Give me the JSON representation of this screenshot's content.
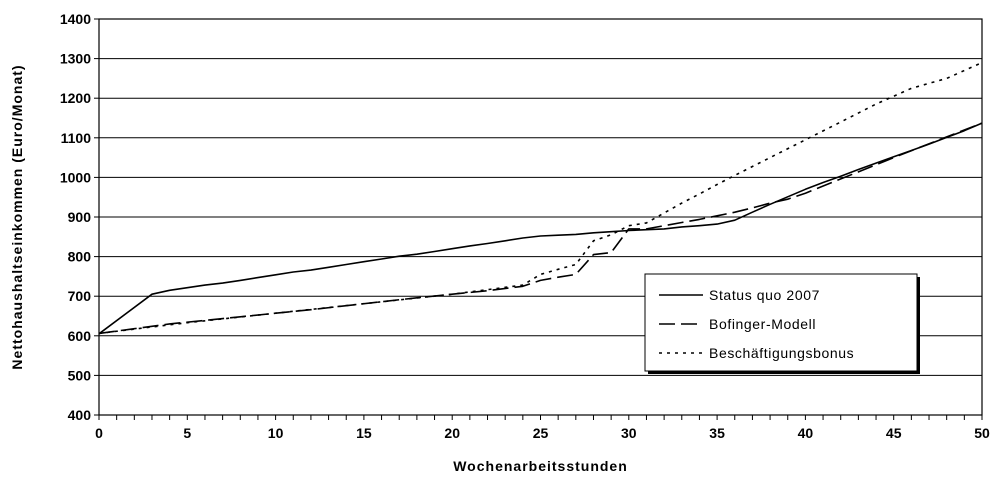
{
  "chart_data": {
    "type": "line",
    "title": "",
    "xlabel": "Wochenarbeitsstunden",
    "ylabel": "Nettohaushaltseinkommen (Euro/Monat)",
    "xlim": [
      0,
      50
    ],
    "ylim": [
      400,
      1400
    ],
    "x_ticks": [
      "0",
      "5",
      "10",
      "15",
      "20",
      "25",
      "30",
      "35",
      "40",
      "45",
      "50"
    ],
    "y_ticks": [
      "400",
      "500",
      "600",
      "700",
      "800",
      "900",
      "1000",
      "1100",
      "1200",
      "1300",
      "1400"
    ],
    "grid": "horizontal",
    "legend_position": "right-center",
    "series": [
      {
        "name": "Status quo 2007",
        "style": "solid",
        "x": [
          0,
          3,
          4,
          6,
          7,
          8,
          9,
          10,
          11,
          12,
          13,
          14,
          15,
          16,
          17,
          18,
          19,
          20,
          21,
          22,
          23,
          24,
          25,
          26,
          27,
          28,
          29,
          30,
          31,
          32,
          33,
          34,
          35,
          36,
          37,
          38,
          39,
          40,
          41,
          42,
          43,
          44,
          45,
          46,
          47,
          48,
          49,
          50
        ],
        "values": [
          605,
          705,
          715,
          728,
          733,
          740,
          747,
          754,
          761,
          766,
          773,
          780,
          787,
          794,
          801,
          806,
          813,
          820,
          827,
          833,
          840,
          847,
          852,
          854,
          856,
          860,
          863,
          866,
          868,
          870,
          875,
          878,
          882,
          892,
          912,
          932,
          951,
          970,
          987,
          1003,
          1020,
          1036,
          1052,
          1068,
          1084,
          1101,
          1118,
          1137
        ]
      },
      {
        "name": "Bofinger-Modell",
        "style": "dashed",
        "x": [
          0,
          2,
          4,
          6,
          8,
          10,
          12,
          14,
          16,
          18,
          20,
          22,
          24,
          25,
          26,
          27,
          28,
          29,
          30,
          31,
          32,
          33,
          34,
          35,
          36,
          37,
          38,
          39,
          40,
          45,
          50
        ],
        "values": [
          606,
          618,
          630,
          639,
          648,
          657,
          666,
          676,
          686,
          696,
          705,
          714,
          725,
          740,
          748,
          755,
          805,
          810,
          870,
          870,
          878,
          886,
          894,
          903,
          912,
          923,
          935,
          945,
          960,
          1050,
          1137
        ]
      },
      {
        "name": "Beschäftigungsbonus",
        "style": "dotted",
        "x": [
          0,
          5,
          10,
          15,
          20,
          24,
          25,
          26,
          27,
          28,
          29,
          30,
          31,
          32,
          33,
          34,
          35,
          36,
          38,
          40,
          42,
          44,
          46,
          48,
          50
        ],
        "values": [
          606,
          633,
          657,
          681,
          705,
          728,
          755,
          768,
          780,
          840,
          855,
          878,
          885,
          910,
          935,
          958,
          982,
          1005,
          1050,
          1095,
          1140,
          1185,
          1225,
          1250,
          1290
        ]
      }
    ]
  }
}
